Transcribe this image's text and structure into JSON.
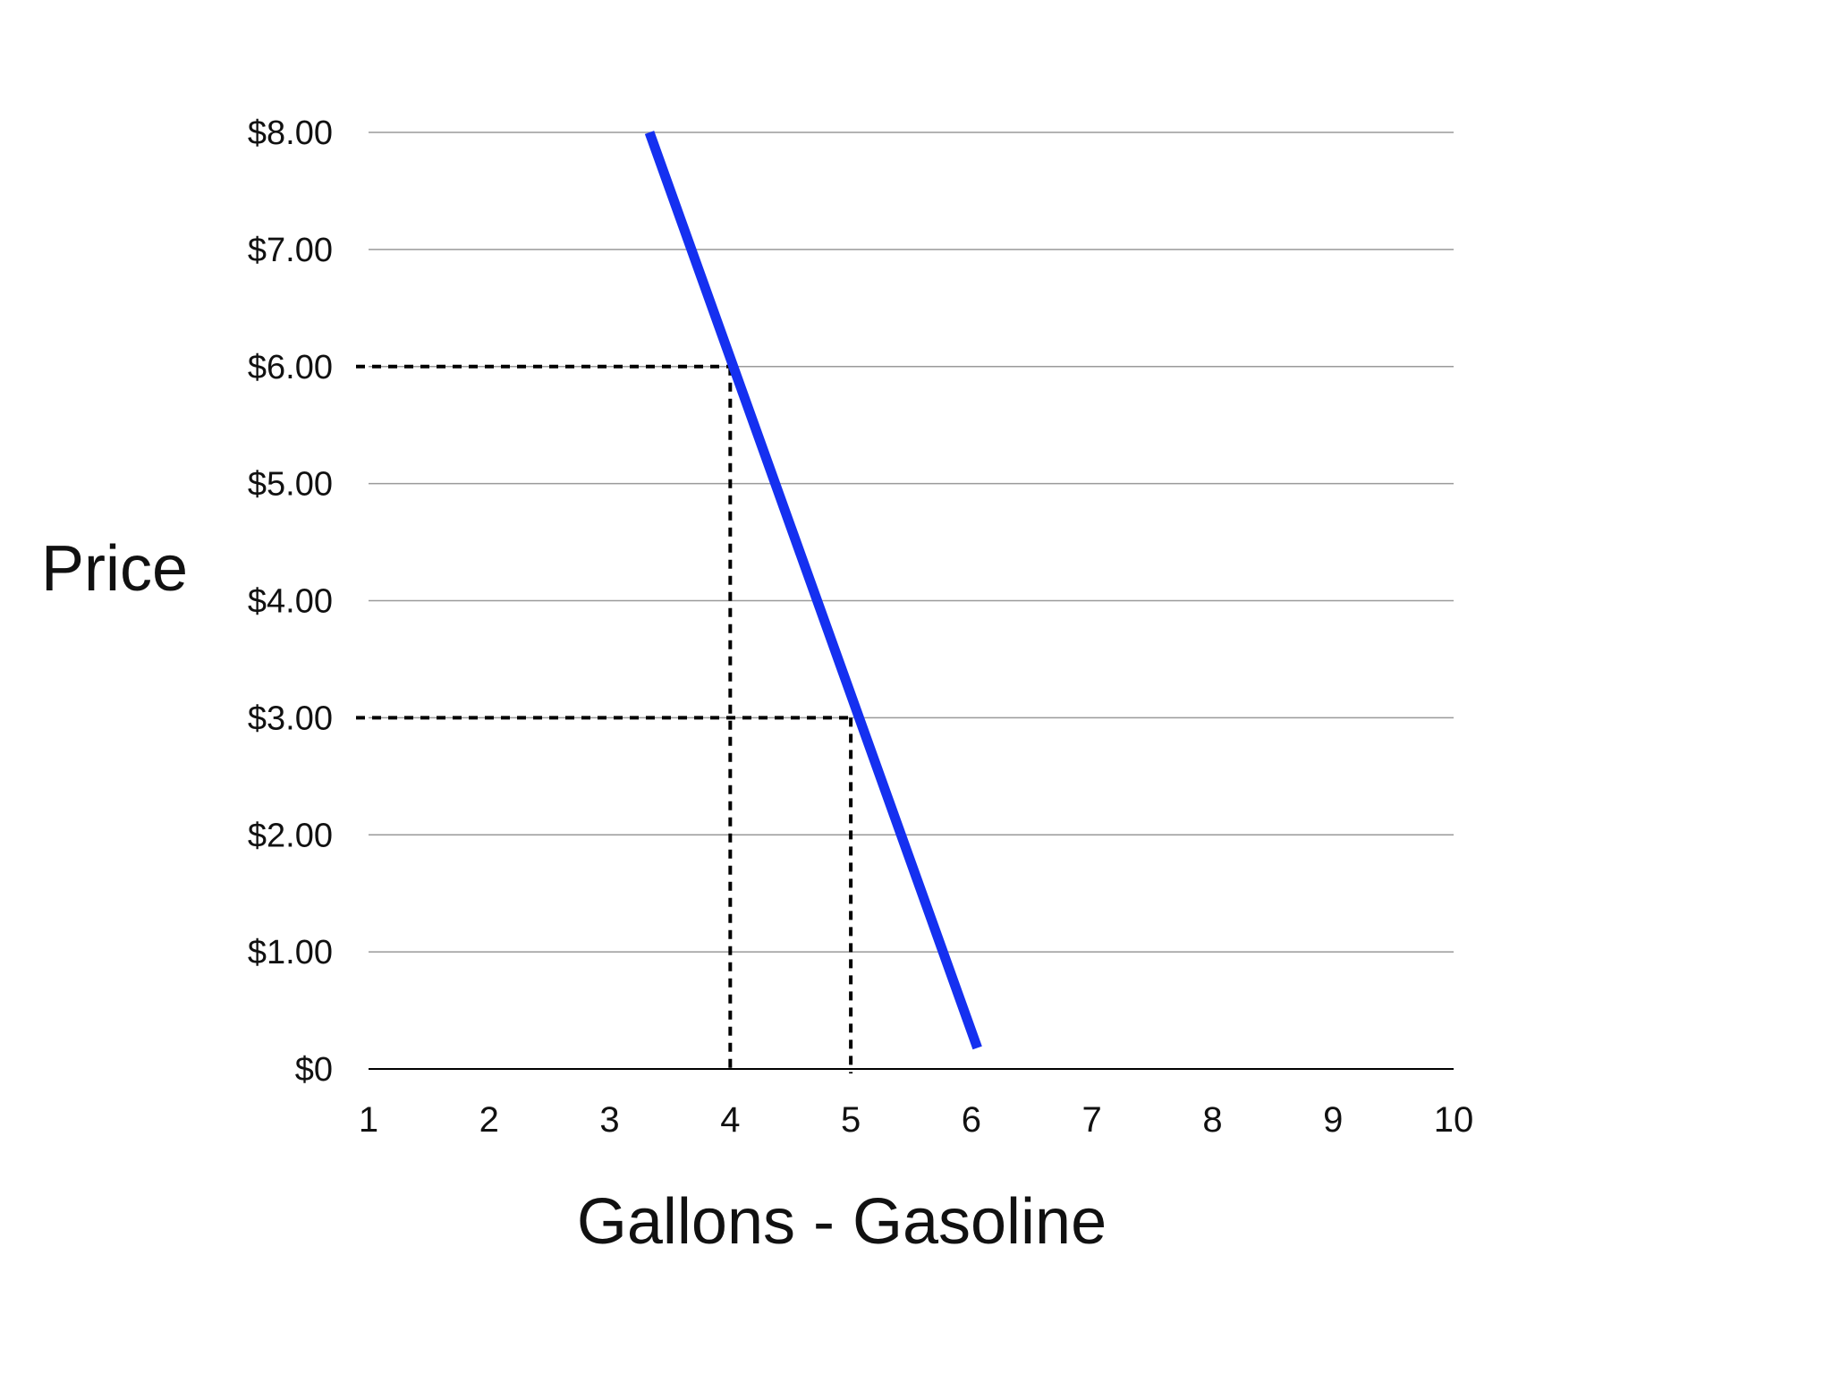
{
  "chart_data": {
    "type": "line",
    "title": "",
    "xlabel": "Gallons - Gasoline",
    "ylabel": "Price",
    "xlim": [
      1,
      10
    ],
    "ylim": [
      0,
      8
    ],
    "x_ticks": [
      "1",
      "2",
      "3",
      "4",
      "5",
      "6",
      "7",
      "8",
      "9",
      "10"
    ],
    "y_ticks": [
      "$0",
      "$1.00",
      "$2.00",
      "$3.00",
      "$4.00",
      "$5.00",
      "$6.00",
      "$7.00",
      "$8.00"
    ],
    "grid": "horizontal",
    "legend": "none",
    "series": [
      {
        "x": [
          3.33,
          6.05
        ],
        "y": [
          8.0,
          0.18
        ],
        "color": "#1530f0"
      }
    ],
    "reference_points": [
      {
        "x": 4,
        "y": 6
      },
      {
        "x": 5,
        "y": 3
      }
    ],
    "colors": {
      "line": "#1530f0",
      "grid": "#9a9a9a",
      "axis": "#000000",
      "reference": "#000000"
    }
  }
}
